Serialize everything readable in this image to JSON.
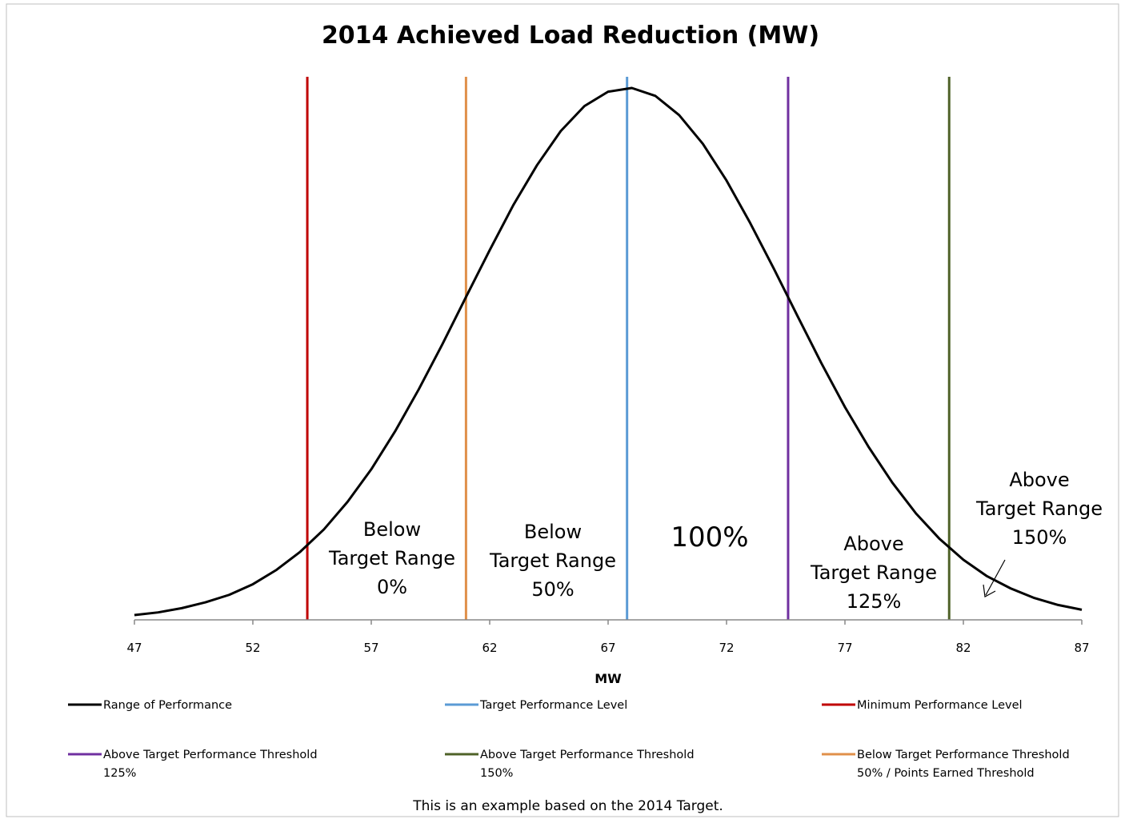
{
  "chart_data": {
    "type": "line",
    "title": "2014 Achieved Load Reduction (MW)",
    "x_label": "MW",
    "xlim": [
      47,
      87
    ],
    "xticks": [
      47,
      52,
      57,
      62,
      67,
      72,
      77,
      82,
      87
    ],
    "ylim": [
      0,
      100
    ],
    "series": [
      {
        "name": "Range of Performance",
        "color": "#000000",
        "x": [
          47,
          48,
          49,
          50,
          51,
          52,
          53,
          54,
          55,
          56,
          57,
          58,
          59,
          60,
          61,
          62,
          63,
          64,
          65,
          66,
          67,
          68,
          69,
          70,
          71,
          72,
          73,
          74,
          75,
          76,
          77,
          78,
          79,
          80,
          81,
          82,
          83,
          84,
          85,
          86,
          87
        ],
        "values": [
          0.9,
          1.4,
          2.2,
          3.3,
          4.7,
          6.7,
          9.4,
          12.8,
          17.0,
          22.2,
          28.3,
          35.4,
          43.3,
          51.8,
          60.7,
          69.5,
          78.0,
          85.5,
          91.9,
          96.6,
          99.3,
          100.0,
          98.5,
          94.9,
          89.5,
          82.6,
          74.6,
          66.0,
          57.1,
          48.3,
          40.0,
          32.5,
          25.8,
          20.0,
          15.2,
          11.3,
          8.2,
          5.9,
          4.1,
          2.8,
          1.9
        ]
      }
    ],
    "reference_lines": [
      {
        "name": "Target Performance Level",
        "color": "#5b9bd5",
        "x": 67.8
      },
      {
        "name": "Minimum Performance Level",
        "color": "#c00000",
        "x": 54.3
      },
      {
        "name": "Above Target Performance Threshold\n125%",
        "color": "#7030a0",
        "x": 74.6
      },
      {
        "name": "Above Target Performance Threshold\n150%",
        "color": "#4f6228",
        "x": 81.4
      },
      {
        "name": "Below Target Performance Threshold\n50% / Points Earned Threshold",
        "color": "#e0904a",
        "x": 61.0
      }
    ],
    "annotations": [
      "Below\nTarget Range\n0%",
      "Below\nTarget Range\n50%",
      "100%",
      "Above\nTarget Range\n125%",
      "Above\nTarget Range\n150%"
    ],
    "footnote": "This is an example based on the 2014 Target."
  }
}
